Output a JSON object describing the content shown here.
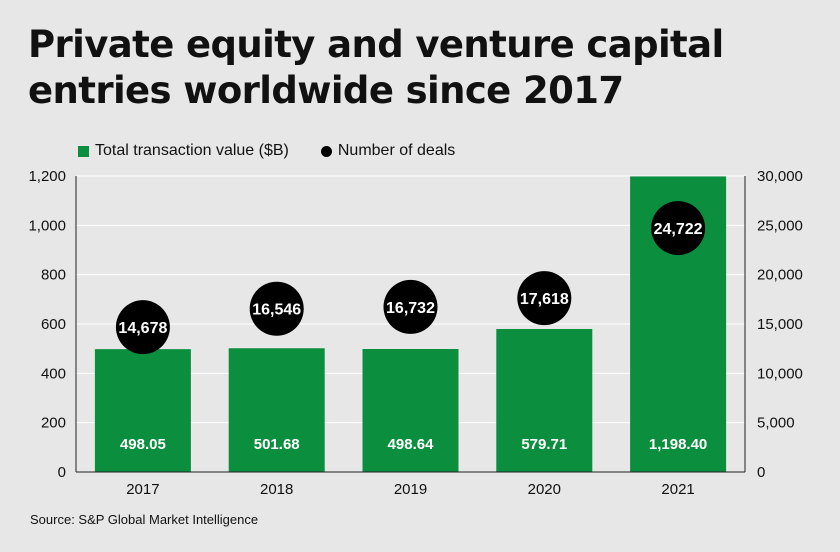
{
  "colors": {
    "bar": "#0b8f3f",
    "dot": "#000000",
    "background": "#e7e7e7"
  },
  "legend": {
    "bar_label": "Total transaction value ($B)",
    "dot_label": "Number of deals"
  },
  "source": "Source: S&P Global Market Intelligence",
  "chart_data": {
    "type": "bar",
    "title": "Private equity and venture capital entries worldwide since 2017",
    "categories": [
      "2017",
      "2018",
      "2019",
      "2020",
      "2021"
    ],
    "series": [
      {
        "name": "Total transaction value ($B)",
        "axis": "left",
        "values": [
          498.05,
          501.68,
          498.64,
          579.71,
          1198.4
        ],
        "labels": [
          "498.05",
          "501.68",
          "498.64",
          "579.71",
          "1,198.40"
        ]
      },
      {
        "name": "Number of deals",
        "axis": "right",
        "type": "scatter",
        "values": [
          14678,
          16546,
          16732,
          17618,
          24722
        ],
        "labels": [
          "14,678",
          "16,546",
          "16,732",
          "17,618",
          "24,722"
        ]
      }
    ],
    "ylim": [
      0,
      1200
    ],
    "y_ticks": [
      0,
      200,
      400,
      600,
      800,
      1000,
      1200
    ],
    "y_tick_labels": [
      "0",
      "200",
      "400",
      "600",
      "800",
      "1,000",
      "1,200"
    ],
    "y2lim": [
      0,
      30000
    ],
    "y2_ticks": [
      0,
      5000,
      10000,
      15000,
      20000,
      25000,
      30000
    ],
    "y2_tick_labels": [
      "0",
      "5,000",
      "10,000",
      "15,000",
      "20,000",
      "25,000",
      "30,000"
    ],
    "grid": true,
    "legend_position": "top-left"
  }
}
